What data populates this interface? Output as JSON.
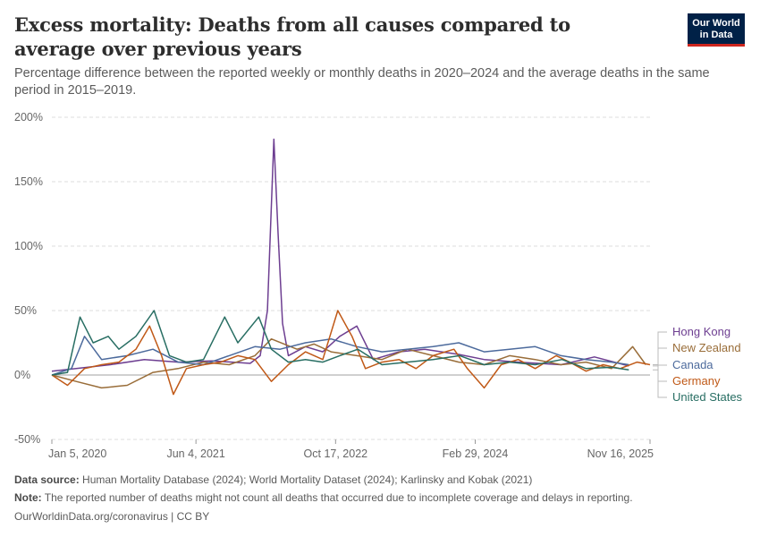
{
  "header": {
    "title": "Excess mortality: Deaths from all causes compared to average over previous years",
    "subtitle": "Percentage difference between the reported weekly or monthly deaths in 2020–2024 and the average deaths in the same period in 2015–2019.",
    "logo_line1": "Our World",
    "logo_line2": "in Data"
  },
  "footer": {
    "source_label": "Data source:",
    "source_text": "Human Mortality Database (2024); World Mortality Dataset (2024); Karlinsky and Kobak (2021)",
    "note_label": "Note:",
    "note_text": "The reported number of deaths might not count all deaths that occurred due to incomplete coverage and delays in reporting.",
    "credit": "OurWorldinData.org/coronavirus | CC BY"
  },
  "colors": {
    "hong_kong": "#6d3e91",
    "new_zealand": "#996d39",
    "canada": "#4c6a9c",
    "germany": "#c05917",
    "united_states": "#286e63",
    "grid": "#dddddd",
    "zero_line": "#a1a1a1"
  },
  "chart_data": {
    "type": "line",
    "title": "Excess mortality: Deaths from all causes compared to average over previous years",
    "ylabel": "",
    "xlabel": "",
    "ylim": [
      -50,
      200
    ],
    "yticks": [
      -50,
      0,
      50,
      100,
      150,
      200
    ],
    "ytick_labels": [
      "-50%",
      "0%",
      "50%",
      "100%",
      "150%",
      "200%"
    ],
    "xlim": [
      "2020-01-05",
      "2025-11-16"
    ],
    "xticks": [
      "2020-01-05",
      "2021-06-04",
      "2022-10-17",
      "2024-02-29",
      "2025-11-16"
    ],
    "xtick_labels": [
      "Jan 5, 2020",
      "Jun 4, 2021",
      "Oct 17, 2022",
      "Feb 29, 2024",
      "Nov 16, 2025"
    ],
    "grid": true,
    "legend": "right",
    "series": [
      {
        "name": "Hong Kong",
        "color": "#6d3e91",
        "x": [
          "2020-01-05",
          "2020-04-01",
          "2020-08-01",
          "2020-12-01",
          "2021-04-01",
          "2021-08-01",
          "2021-12-15",
          "2022-01-20",
          "2022-02-15",
          "2022-03-10",
          "2022-03-25",
          "2022-04-10",
          "2022-05-01",
          "2022-07-01",
          "2022-09-01",
          "2022-11-01",
          "2023-01-01",
          "2023-03-01",
          "2023-06-01",
          "2023-09-01",
          "2024-01-01",
          "2024-04-01",
          "2024-08-01",
          "2025-01-01",
          "2025-05-01",
          "2025-09-01"
        ],
        "y": [
          3,
          5,
          8,
          12,
          10,
          11,
          9,
          15,
          50,
          183,
          110,
          40,
          15,
          22,
          18,
          30,
          38,
          12,
          18,
          20,
          16,
          12,
          10,
          8,
          14,
          7
        ]
      },
      {
        "name": "New Zealand",
        "color": "#996d39",
        "x": [
          "2020-01-05",
          "2020-04-01",
          "2020-07-01",
          "2020-10-01",
          "2021-01-01",
          "2021-04-01",
          "2021-07-01",
          "2021-10-01",
          "2022-01-01",
          "2022-03-01",
          "2022-06-01",
          "2022-08-01",
          "2022-10-01",
          "2023-01-01",
          "2023-04-01",
          "2023-07-01",
          "2023-10-01",
          "2024-01-01",
          "2024-04-01",
          "2024-07-01",
          "2024-10-01",
          "2025-01-01",
          "2025-04-01",
          "2025-07-01",
          "2025-09-15",
          "2025-11-01"
        ],
        "y": [
          0,
          -5,
          -10,
          -8,
          2,
          5,
          10,
          8,
          15,
          28,
          20,
          24,
          18,
          15,
          12,
          20,
          15,
          10,
          8,
          15,
          12,
          8,
          10,
          5,
          22,
          8
        ]
      },
      {
        "name": "Canada",
        "color": "#4c6a9c",
        "x": [
          "2020-01-05",
          "2020-03-15",
          "2020-05-01",
          "2020-07-01",
          "2020-10-01",
          "2021-01-01",
          "2021-04-01",
          "2021-07-01",
          "2021-10-01",
          "2022-01-01",
          "2022-04-01",
          "2022-07-01",
          "2022-10-01",
          "2023-01-01",
          "2023-04-01",
          "2023-07-01",
          "2023-10-01",
          "2024-01-01",
          "2024-04-01",
          "2024-07-01",
          "2024-10-01",
          "2025-01-01",
          "2025-04-01",
          "2025-07-01",
          "2025-09-01"
        ],
        "y": [
          0,
          5,
          30,
          12,
          15,
          20,
          10,
          8,
          15,
          22,
          20,
          25,
          28,
          22,
          18,
          20,
          22,
          25,
          18,
          20,
          22,
          15,
          12,
          10,
          8
        ]
      },
      {
        "name": "Germany",
        "color": "#c05917",
        "x": [
          "2020-01-05",
          "2020-03-01",
          "2020-05-01",
          "2020-07-01",
          "2020-09-01",
          "2020-11-01",
          "2020-12-20",
          "2021-02-01",
          "2021-03-15",
          "2021-05-01",
          "2021-07-01",
          "2021-09-01",
          "2021-11-01",
          "2022-01-01",
          "2022-03-01",
          "2022-05-01",
          "2022-07-01",
          "2022-09-01",
          "2022-10-25",
          "2022-12-15",
          "2023-02-01",
          "2023-04-01",
          "2023-06-01",
          "2023-08-01",
          "2023-10-01",
          "2023-12-15",
          "2024-02-01",
          "2024-04-01",
          "2024-06-01",
          "2024-08-01",
          "2024-10-01",
          "2024-12-15",
          "2025-02-01",
          "2025-04-01",
          "2025-06-01",
          "2025-08-01",
          "2025-10-01",
          "2025-11-16"
        ],
        "y": [
          0,
          -8,
          5,
          8,
          10,
          20,
          38,
          15,
          -15,
          5,
          8,
          10,
          15,
          12,
          -5,
          8,
          18,
          12,
          50,
          30,
          5,
          10,
          12,
          5,
          15,
          20,
          5,
          -10,
          8,
          12,
          5,
          15,
          10,
          3,
          8,
          5,
          10,
          8
        ]
      },
      {
        "name": "United States",
        "color": "#286e63",
        "x": [
          "2020-01-05",
          "2020-03-01",
          "2020-04-15",
          "2020-06-01",
          "2020-07-25",
          "2020-09-01",
          "2020-11-01",
          "2021-01-05",
          "2021-03-01",
          "2021-05-01",
          "2021-07-01",
          "2021-09-15",
          "2021-11-01",
          "2022-01-15",
          "2022-03-01",
          "2022-05-01",
          "2022-07-01",
          "2022-09-01",
          "2022-11-01",
          "2023-01-05",
          "2023-04-01",
          "2023-07-01",
          "2023-10-01",
          "2024-01-05",
          "2024-04-01",
          "2024-07-01",
          "2024-10-01",
          "2025-01-05",
          "2025-04-01",
          "2025-07-01",
          "2025-09-01"
        ],
        "y": [
          0,
          2,
          45,
          25,
          30,
          20,
          30,
          50,
          15,
          10,
          12,
          45,
          25,
          45,
          20,
          10,
          12,
          10,
          15,
          20,
          8,
          10,
          12,
          15,
          8,
          10,
          8,
          12,
          5,
          6,
          4
        ]
      }
    ]
  }
}
